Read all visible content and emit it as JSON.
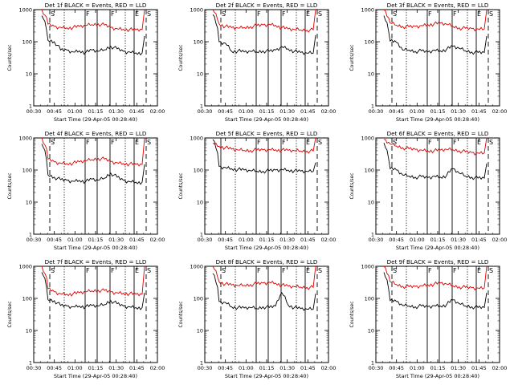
{
  "chart_data": [
    {
      "type": "line",
      "title": "Det 1f BLACK = Events, RED = LLD",
      "xlabel": "Start Time (29-Apr-05 00:28:40)",
      "ylabel": "Counts/sec",
      "yscale": "log",
      "ylim": [
        1,
        1000
      ],
      "x_tick_labels": [
        "00:30",
        "00:45",
        "01:00",
        "01:15",
        "01:30",
        "01:45",
        "02:00"
      ],
      "y_tick_labels": [
        "1",
        "10",
        "100",
        "1000"
      ],
      "markers": [
        {
          "type": "dashed",
          "label": "S"
        },
        {
          "type": "dotted",
          "label": ""
        },
        {
          "type": "solid",
          "label": "F"
        },
        {
          "type": "solid",
          "label": ""
        },
        {
          "type": "solid",
          "label": "F"
        },
        {
          "type": "dotted",
          "label": ""
        },
        {
          "type": "solid",
          "label": "E"
        },
        {
          "type": "dashed",
          "label": "S"
        }
      ],
      "series": [
        {
          "name": "Events",
          "color": "#000000",
          "values": [
            650,
            110,
            100,
            55,
            55,
            48,
            52,
            46,
            55,
            50,
            56,
            72,
            60,
            50,
            48,
            45,
            45,
            150
          ]
        },
        {
          "name": "LLD",
          "color": "#e00000",
          "values": [
            1000,
            350,
            300,
            280,
            270,
            280,
            300,
            320,
            340,
            360,
            330,
            280,
            255,
            245,
            240,
            235,
            240,
            1000
          ]
        }
      ]
    },
    {
      "type": "line",
      "title": "Det 2f BLACK = Events, RED = LLD",
      "xlabel": "Start Time (29-Apr-05 00:28:40)",
      "ylabel": "Counts/sec",
      "yscale": "log",
      "ylim": [
        1,
        1000
      ],
      "x_tick_labels": [
        "00:30",
        "00:45",
        "01:00",
        "01:15",
        "01:30",
        "01:45",
        "02:00"
      ],
      "y_tick_labels": [
        "1",
        "10",
        "100",
        "1000"
      ],
      "markers": [
        {
          "type": "dashed",
          "label": "S"
        },
        {
          "type": "dotted",
          "label": ""
        },
        {
          "type": "solid",
          "label": "F"
        },
        {
          "type": "solid",
          "label": ""
        },
        {
          "type": "solid",
          "label": "F"
        },
        {
          "type": "dotted",
          "label": ""
        },
        {
          "type": "solid",
          "label": "E"
        },
        {
          "type": "dashed",
          "label": "S"
        }
      ],
      "series": [
        {
          "name": "Events",
          "color": "#000000",
          "values": [
            700,
            100,
            90,
            50,
            52,
            48,
            50,
            48,
            52,
            50,
            55,
            70,
            60,
            50,
            46,
            44,
            44,
            160
          ]
        },
        {
          "name": "LLD",
          "color": "#e00000",
          "values": [
            1000,
            360,
            300,
            275,
            265,
            275,
            295,
            315,
            335,
            350,
            325,
            275,
            250,
            240,
            235,
            230,
            235,
            1000
          ]
        }
      ]
    },
    {
      "type": "line",
      "title": "Det 3f BLACK = Events, RED = LLD",
      "xlabel": "Start Time (29-Apr-05 00:28:40)",
      "ylabel": "Counts/sec",
      "yscale": "log",
      "ylim": [
        1,
        1000
      ],
      "x_tick_labels": [
        "00:30",
        "00:45",
        "01:00",
        "01:15",
        "01:30",
        "01:45",
        "02:00"
      ],
      "y_tick_labels": [
        "1",
        "10",
        "100",
        "1000"
      ],
      "markers": [
        {
          "type": "dashed",
          "label": "S"
        },
        {
          "type": "dotted",
          "label": ""
        },
        {
          "type": "solid",
          "label": "F"
        },
        {
          "type": "solid",
          "label": ""
        },
        {
          "type": "solid",
          "label": "F"
        },
        {
          "type": "dotted",
          "label": ""
        },
        {
          "type": "solid",
          "label": "E"
        },
        {
          "type": "dashed",
          "label": "S"
        }
      ],
      "series": [
        {
          "name": "Events",
          "color": "#000000",
          "values": [
            650,
            105,
            95,
            55,
            55,
            50,
            52,
            48,
            55,
            52,
            58,
            72,
            62,
            52,
            48,
            46,
            46,
            150
          ]
        },
        {
          "name": "LLD",
          "color": "#e00000",
          "values": [
            1000,
            380,
            330,
            300,
            290,
            300,
            320,
            340,
            360,
            380,
            350,
            300,
            270,
            260,
            255,
            250,
            250,
            1000
          ]
        }
      ]
    },
    {
      "type": "line",
      "title": "Det 4f BLACK = Events, RED = LLD",
      "xlabel": "Start Time (29-Apr-05 00:28:40)",
      "ylabel": "Counts/sec",
      "yscale": "log",
      "ylim": [
        1,
        1000
      ],
      "x_tick_labels": [
        "00:30",
        "00:45",
        "01:00",
        "01:15",
        "01:30",
        "01:45",
        "02:00"
      ],
      "y_tick_labels": [
        "1",
        "10",
        "100",
        "1000"
      ],
      "markers": [
        {
          "type": "dashed",
          "label": "S"
        },
        {
          "type": "dotted",
          "label": ""
        },
        {
          "type": "solid",
          "label": "F"
        },
        {
          "type": "solid",
          "label": ""
        },
        {
          "type": "solid",
          "label": "F"
        },
        {
          "type": "dotted",
          "label": ""
        },
        {
          "type": "solid",
          "label": "E"
        },
        {
          "type": "dashed",
          "label": "S"
        }
      ],
      "series": [
        {
          "name": "Events",
          "color": "#000000",
          "values": [
            650,
            70,
            60,
            50,
            48,
            45,
            48,
            44,
            52,
            48,
            56,
            80,
            60,
            48,
            44,
            42,
            42,
            150
          ]
        },
        {
          "name": "LLD",
          "color": "#e00000",
          "values": [
            1000,
            220,
            180,
            165,
            160,
            165,
            180,
            195,
            210,
            230,
            220,
            185,
            170,
            160,
            155,
            150,
            150,
            1000
          ]
        }
      ]
    },
    {
      "type": "line",
      "title": "Det 5f BLACK = Events, RED = LLD",
      "xlabel": "Start Time (29-Apr-05 00:28:40)",
      "ylabel": "Counts/sec",
      "yscale": "log",
      "ylim": [
        1,
        1000
      ],
      "x_tick_labels": [
        "00:30",
        "00:45",
        "01:00",
        "01:15",
        "01:30",
        "01:45",
        "02:00"
      ],
      "y_tick_labels": [
        "1",
        "10",
        "100",
        "1000"
      ],
      "markers": [
        {
          "type": "solid",
          "label": ""
        },
        {
          "type": "dotted",
          "label": ""
        },
        {
          "type": "solid",
          "label": "F"
        },
        {
          "type": "solid",
          "label": ""
        },
        {
          "type": "solid",
          "label": "F"
        },
        {
          "type": "dotted",
          "label": ""
        },
        {
          "type": "solid",
          "label": "E"
        },
        {
          "type": "dashed",
          "label": "S"
        }
      ],
      "series": [
        {
          "name": "Events",
          "color": "#000000",
          "values": [
            900,
            130,
            120,
            110,
            105,
            100,
            95,
            92,
            92,
            95,
            100,
            105,
            100,
            95,
            92,
            90,
            90,
            170
          ]
        },
        {
          "name": "LLD",
          "color": "#e00000",
          "values": [
            700,
            550,
            500,
            450,
            420,
            410,
            410,
            420,
            430,
            440,
            430,
            420,
            410,
            400,
            395,
            390,
            390,
            1000
          ]
        }
      ]
    },
    {
      "type": "line",
      "title": "Det 6f BLACK = Events, RED = LLD",
      "xlabel": "Start Time (29-Apr-05 00:28:40)",
      "ylabel": "Counts/sec",
      "yscale": "log",
      "ylim": [
        1,
        1000
      ],
      "x_tick_labels": [
        "00:30",
        "00:45",
        "01:00",
        "01:15",
        "01:30",
        "01:45",
        "02:00"
      ],
      "y_tick_labels": [
        "1",
        "10",
        "100",
        "1000"
      ],
      "markers": [
        {
          "type": "dashed",
          "label": "S"
        },
        {
          "type": "dotted",
          "label": ""
        },
        {
          "type": "solid",
          "label": "F"
        },
        {
          "type": "solid",
          "label": ""
        },
        {
          "type": "solid",
          "label": "F"
        },
        {
          "type": "dotted",
          "label": ""
        },
        {
          "type": "solid",
          "label": "E"
        },
        {
          "type": "dashed",
          "label": "S"
        }
      ],
      "series": [
        {
          "name": "Events",
          "color": "#000000",
          "values": [
            700,
            110,
            100,
            70,
            65,
            60,
            62,
            58,
            65,
            60,
            68,
            110,
            80,
            65,
            60,
            56,
            56,
            160
          ]
        },
        {
          "name": "LLD",
          "color": "#e00000",
          "values": [
            900,
            650,
            560,
            500,
            460,
            440,
            420,
            400,
            400,
            420,
            440,
            430,
            400,
            370,
            350,
            340,
            340,
            1000
          ]
        }
      ]
    },
    {
      "type": "line",
      "title": "Det 7f BLACK = Events, RED = LLD",
      "xlabel": "Start Time (29-Apr-05 00:28:40)",
      "ylabel": "Counts/sec",
      "yscale": "log",
      "ylim": [
        1,
        1000
      ],
      "x_tick_labels": [
        "00:30",
        "00:45",
        "01:00",
        "01:15",
        "01:30",
        "01:45",
        "02:00"
      ],
      "y_tick_labels": [
        "1",
        "10",
        "100",
        "1000"
      ],
      "markers": [
        {
          "type": "dashed",
          "label": "S"
        },
        {
          "type": "dotted",
          "label": ""
        },
        {
          "type": "solid",
          "label": "F"
        },
        {
          "type": "solid",
          "label": ""
        },
        {
          "type": "solid",
          "label": "F"
        },
        {
          "type": "dotted",
          "label": ""
        },
        {
          "type": "solid",
          "label": "E"
        },
        {
          "type": "dashed",
          "label": "S"
        }
      ],
      "series": [
        {
          "name": "Events",
          "color": "#000000",
          "values": [
            650,
            90,
            85,
            60,
            58,
            55,
            58,
            55,
            60,
            58,
            64,
            85,
            68,
            58,
            55,
            52,
            52,
            150
          ]
        },
        {
          "name": "LLD",
          "color": "#e00000",
          "values": [
            1000,
            200,
            160,
            140,
            135,
            140,
            150,
            160,
            170,
            180,
            175,
            160,
            150,
            145,
            140,
            135,
            135,
            1000
          ]
        }
      ]
    },
    {
      "type": "line",
      "title": "Det 8f BLACK = Events, RED = LLD",
      "xlabel": "Start Time (29-Apr-05 00:28:40)",
      "ylabel": "Counts/sec",
      "yscale": "log",
      "ylim": [
        1,
        1000
      ],
      "x_tick_labels": [
        "00:30",
        "00:45",
        "01:00",
        "01:15",
        "01:30",
        "01:45",
        "02:00"
      ],
      "y_tick_labels": [
        "1",
        "10",
        "100",
        "1000"
      ],
      "markers": [
        {
          "type": "dashed",
          "label": "S"
        },
        {
          "type": "dotted",
          "label": ""
        },
        {
          "type": "solid",
          "label": "F"
        },
        {
          "type": "solid",
          "label": ""
        },
        {
          "type": "solid",
          "label": "F"
        },
        {
          "type": "dotted",
          "label": ""
        },
        {
          "type": "solid",
          "label": "E"
        },
        {
          "type": "dashed",
          "label": "S"
        }
      ],
      "series": [
        {
          "name": "Events",
          "color": "#000000",
          "values": [
            600,
            80,
            75,
            55,
            52,
            50,
            52,
            48,
            55,
            52,
            58,
            150,
            62,
            52,
            48,
            46,
            46,
            140
          ]
        },
        {
          "name": "LLD",
          "color": "#e00000",
          "values": [
            1000,
            330,
            280,
            260,
            250,
            255,
            270,
            285,
            300,
            320,
            300,
            260,
            240,
            230,
            225,
            220,
            220,
            1000
          ]
        }
      ]
    },
    {
      "type": "line",
      "title": "Det 9f BLACK = Events, RED = LLD",
      "xlabel": "Start Time (29-Apr-05 00:28:40)",
      "ylabel": "Counts/sec",
      "yscale": "log",
      "ylim": [
        1,
        1000
      ],
      "x_tick_labels": [
        "00:30",
        "00:45",
        "01:00",
        "01:15",
        "01:30",
        "01:45",
        "02:00"
      ],
      "y_tick_labels": [
        "1",
        "10",
        "100",
        "1000"
      ],
      "markers": [
        {
          "type": "dashed",
          "label": "S"
        },
        {
          "type": "dotted",
          "label": ""
        },
        {
          "type": "solid",
          "label": "F"
        },
        {
          "type": "solid",
          "label": ""
        },
        {
          "type": "solid",
          "label": "F"
        },
        {
          "type": "dotted",
          "label": ""
        },
        {
          "type": "solid",
          "label": "E"
        },
        {
          "type": "dashed",
          "label": "S"
        }
      ],
      "series": [
        {
          "name": "Events",
          "color": "#000000",
          "values": [
            650,
            85,
            80,
            60,
            58,
            55,
            58,
            55,
            60,
            58,
            64,
            90,
            68,
            58,
            55,
            52,
            52,
            150
          ]
        },
        {
          "name": "LLD",
          "color": "#e00000",
          "values": [
            1000,
            330,
            270,
            240,
            230,
            235,
            250,
            265,
            280,
            300,
            280,
            245,
            230,
            220,
            215,
            210,
            210,
            1000
          ]
        }
      ]
    }
  ]
}
